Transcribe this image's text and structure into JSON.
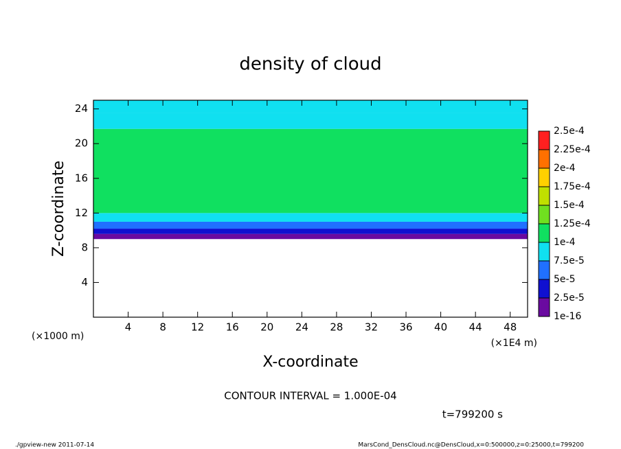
{
  "chart_data": {
    "type": "heatmap",
    "title": "density of cloud",
    "x_label": "X-coordinate",
    "y_label": "Z-coordinate",
    "x_unit": "(×1E4 m)",
    "y_unit": "(×1000 m)",
    "xlim": [
      0,
      50
    ],
    "xticks": [
      4,
      8,
      12,
      16,
      20,
      24,
      28,
      32,
      36,
      40,
      44,
      48
    ],
    "ylim": [
      0,
      25
    ],
    "yticks": [
      4,
      8,
      12,
      16,
      20,
      24
    ],
    "profile": {
      "z_bins": [
        9,
        9.6,
        10.2,
        11,
        12,
        21.7,
        23.5,
        25
      ],
      "values": [
        1e-05,
        3.5e-05,
        6e-05,
        9e-05,
        0.00011,
        9e-05,
        8e-05
      ]
    },
    "colorbar": {
      "ticks": [
        {
          "value": 1e-16,
          "label": "1e-16"
        },
        {
          "value": 2.5e-05,
          "label": "2.5e-5"
        },
        {
          "value": 5e-05,
          "label": "5e-5"
        },
        {
          "value": 7.5e-05,
          "label": "7.5e-5"
        },
        {
          "value": 0.0001,
          "label": "1e-4"
        },
        {
          "value": 0.000125,
          "label": "1.25e-4"
        },
        {
          "value": 0.00015,
          "label": "1.5e-4"
        },
        {
          "value": 0.000175,
          "label": "1.75e-4"
        },
        {
          "value": 0.0002,
          "label": "2e-4"
        },
        {
          "value": 0.000225,
          "label": "2.25e-4"
        },
        {
          "value": 0.00025,
          "label": "2.5e-4"
        }
      ],
      "colors": [
        "#6a0aa0",
        "#1010d0",
        "#2070ff",
        "#10e0f0",
        "#10e060",
        "#70e020",
        "#c0e000",
        "#ffd000",
        "#ff7000",
        "#ff2020"
      ]
    },
    "contour_interval": "CONTOUR INTERVAL = 1.000E-04",
    "time": "t=799200 s",
    "footer_left": "./gpview-new  2011-07-14",
    "footer_right": "MarsCond_DensCloud.nc@DensCloud,x=0:500000,z=0:25000,t=799200"
  }
}
